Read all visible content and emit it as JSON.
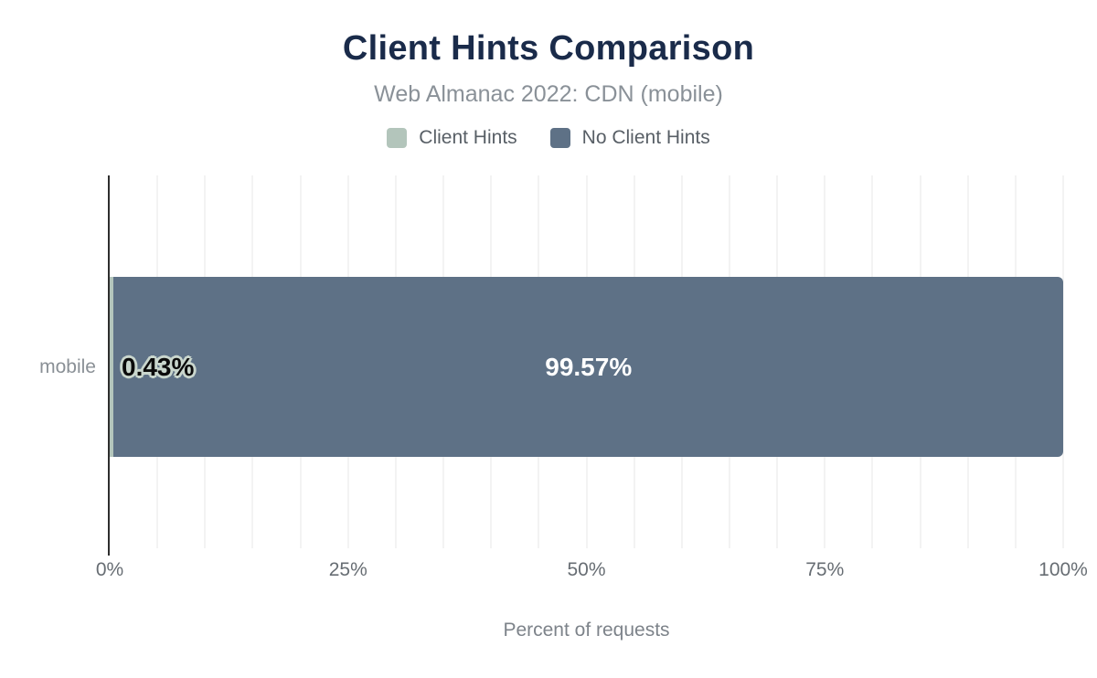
{
  "header": {
    "title": "Client Hints Comparison",
    "subtitle": "Web Almanac 2022: CDN (mobile)"
  },
  "chart_data": {
    "type": "bar",
    "orientation": "horizontal",
    "stacked": true,
    "title": "Client Hints Comparison",
    "subtitle": "Web Almanac 2022: CDN (mobile)",
    "categories": [
      "mobile"
    ],
    "series": [
      {
        "name": "Client Hints",
        "values": [
          0.43
        ],
        "data_label": "0.43%",
        "color": "#b3c5bb"
      },
      {
        "name": "No Client Hints",
        "values": [
          99.57
        ],
        "data_label": "99.57%",
        "color": "#5e7186"
      }
    ],
    "xlabel": "Percent of requests",
    "ylabel": "",
    "xlim": [
      0,
      100
    ],
    "x_ticks": [
      "0%",
      "25%",
      "50%",
      "75%",
      "100%"
    ],
    "gridline_step_percent": 5,
    "grid": "vertical-minor",
    "legend_position": "top"
  },
  "colors": {
    "title": "#1a2b4a",
    "subtitle": "#8a9198",
    "client_hints": "#b3c5bb",
    "no_client_hints": "#5e7186",
    "value_label_halo": "#c9d6cd",
    "axis_line": "#2e2e2e",
    "gridline": "#f3f3f3"
  }
}
